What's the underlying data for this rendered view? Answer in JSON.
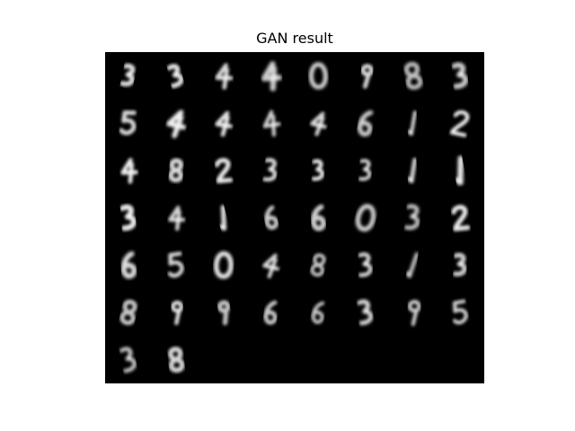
{
  "figure": {
    "title": "GAN result",
    "background_color": "#ffffff",
    "panel_color": "#000000",
    "digit_color": "#f2f2f2"
  },
  "grid": {
    "columns": 8,
    "filled_rows": 7,
    "sample_count": 50,
    "samples": [
      "3",
      "3",
      "4",
      "4",
      "0",
      "9",
      "8",
      "3",
      "5",
      "4",
      "4",
      "4",
      "4",
      "6",
      "1",
      "2",
      "4",
      "8",
      "2",
      "3",
      "3",
      "3",
      "1",
      "1",
      "3",
      "4",
      "1",
      "6",
      "6",
      "0",
      "3",
      "2",
      "6",
      "5",
      "0",
      "4",
      "8",
      "3",
      "1",
      "3",
      "8",
      "9",
      "9",
      "6",
      "6",
      "3",
      "9",
      "5",
      "3",
      "8"
    ]
  }
}
